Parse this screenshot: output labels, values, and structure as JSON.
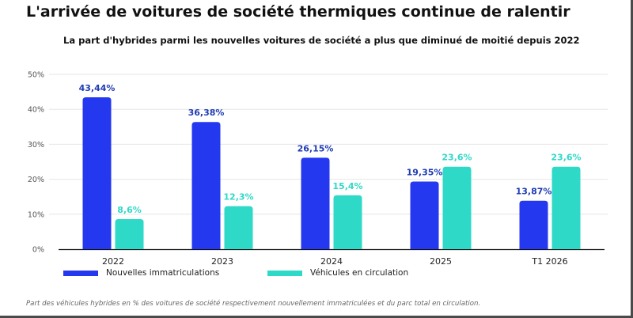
{
  "title": "L'arrivée de voitures de société thermiques continue de ralentir",
  "subtitle": "La part d'hybrides parmi les nouvelles voitures de société a plus que diminué de moitié depuis 2022",
  "note": "Part des véhicules hybrides en % des voitures de société respectivement nouvellement immatriculées et du parc total en circulation.",
  "colors": {
    "series1": "#2438f0",
    "series1_label": "#1f3bb3",
    "series2": "#2ed9c7",
    "series2_label": "#2ed9c7",
    "grid": "#e6e6e6",
    "axis": "#111111",
    "tick": "#555555"
  },
  "chart_data": {
    "type": "bar",
    "categories": [
      "2022",
      "2023",
      "2024",
      "2025",
      "T1 2026"
    ],
    "series": [
      {
        "name": "Nouvelles immatriculations",
        "values": [
          43.44,
          36.38,
          26.15,
          19.35,
          13.87
        ],
        "labels": [
          "43,44%",
          "36,38%",
          "26,15%",
          "19,35%",
          "13,87%"
        ]
      },
      {
        "name": "Véhicules en circulation",
        "values": [
          8.6,
          12.3,
          15.4,
          23.6,
          23.6
        ],
        "labels": [
          "8,6%",
          "12,3%",
          "15,4%",
          "23,6%",
          "23,6%"
        ]
      }
    ],
    "yticks": [
      "0%",
      "10%",
      "20%",
      "30%",
      "40%",
      "50%"
    ],
    "ylim": [
      0,
      50
    ],
    "grid": true,
    "legend_position": "bottom-left"
  }
}
